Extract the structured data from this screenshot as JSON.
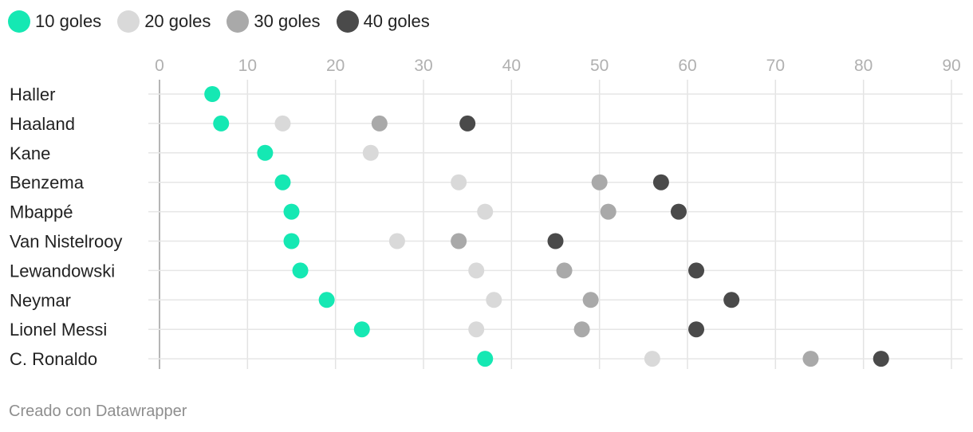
{
  "legend": [
    {
      "label": "10 goles",
      "color": "#15e8b3"
    },
    {
      "label": "20 goles",
      "color": "#d9d9d9"
    },
    {
      "label": "30 goles",
      "color": "#a9a9a9"
    },
    {
      "label": "40 goles",
      "color": "#4a4a4a"
    }
  ],
  "chart_data": {
    "type": "scatter",
    "subtype": "dot-plot",
    "title": "",
    "xlabel": "",
    "ylabel": "",
    "xlim": [
      0,
      90
    ],
    "x_ticks": [
      0,
      10,
      20,
      30,
      40,
      50,
      60,
      70,
      80,
      90
    ],
    "grid": true,
    "legend_position": "top-left",
    "categories": [
      "Haller",
      "Haaland",
      "Kane",
      "Benzema",
      "Mbappé",
      "Van Nistelrooy",
      "Lewandowski",
      "Neymar",
      "Lionel Messi",
      "C. Ronaldo"
    ],
    "series": [
      {
        "name": "10 goles",
        "color": "#15e8b3",
        "values": [
          6,
          7,
          12,
          14,
          15,
          15,
          16,
          19,
          23,
          37
        ]
      },
      {
        "name": "20 goles",
        "color": "#d9d9d9",
        "values": [
          null,
          14,
          24,
          34,
          37,
          27,
          36,
          38,
          36,
          56
        ]
      },
      {
        "name": "30 goles",
        "color": "#a9a9a9",
        "values": [
          null,
          25,
          null,
          50,
          51,
          34,
          46,
          49,
          48,
          74
        ]
      },
      {
        "name": "40 goles",
        "color": "#4a4a4a",
        "values": [
          null,
          35,
          null,
          57,
          59,
          45,
          61,
          65,
          61,
          82
        ]
      }
    ]
  },
  "footer": {
    "credit": "Creado con Datawrapper"
  }
}
